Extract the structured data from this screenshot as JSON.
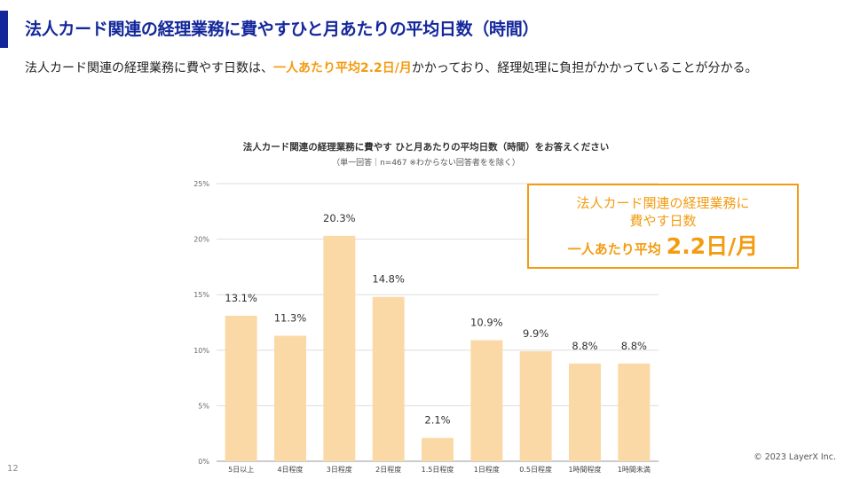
{
  "slide": {
    "title": "法人カード関連の経理業務に費やすひと月あたりの平均日数（時間）",
    "lead_before": "法人カード関連の経理業務に費やす日数は、",
    "lead_highlight": "一人あたり平均2.2日/月",
    "lead_after": "かかっており、経理処理に負担がかかっていることが分かる。",
    "page_number": "12",
    "copyright": "© 2023 LayerX Inc."
  },
  "callout": {
    "line1": "法人カード関連の経理業務に",
    "line2": "費やす日数",
    "line3_prefix": "一人あたり平均",
    "line3_value": "2.2日/月"
  },
  "colors": {
    "title": "#13279b",
    "highlight": "#f39c12",
    "bar": "#fbd9a7",
    "grid": "#dddddd"
  },
  "chart_data": {
    "type": "bar",
    "title": "法人カード関連の経理業務に費やす ひと月あたりの平均日数（時間）をお答えください",
    "subtitle": "（単一回答｜n=467 ※わからない回答者をを除く）",
    "categories": [
      "5日以上",
      "4日程度",
      "3日程度",
      "2日程度",
      "1.5日程度",
      "1日程度",
      "0.5日程度",
      "1時間程度",
      "1時間未満"
    ],
    "values": [
      13.1,
      11.3,
      20.3,
      14.8,
      2.1,
      10.9,
      9.9,
      8.8,
      8.8
    ],
    "value_labels": [
      "13.1%",
      "11.3%",
      "20.3%",
      "14.8%",
      "2.1%",
      "10.9%",
      "9.9%",
      "8.8%",
      "8.8%"
    ],
    "yticks": [
      "0%",
      "5%",
      "10%",
      "15%",
      "20%",
      "25%"
    ],
    "ylim": [
      0,
      25
    ],
    "xlabel": "",
    "ylabel": ""
  }
}
